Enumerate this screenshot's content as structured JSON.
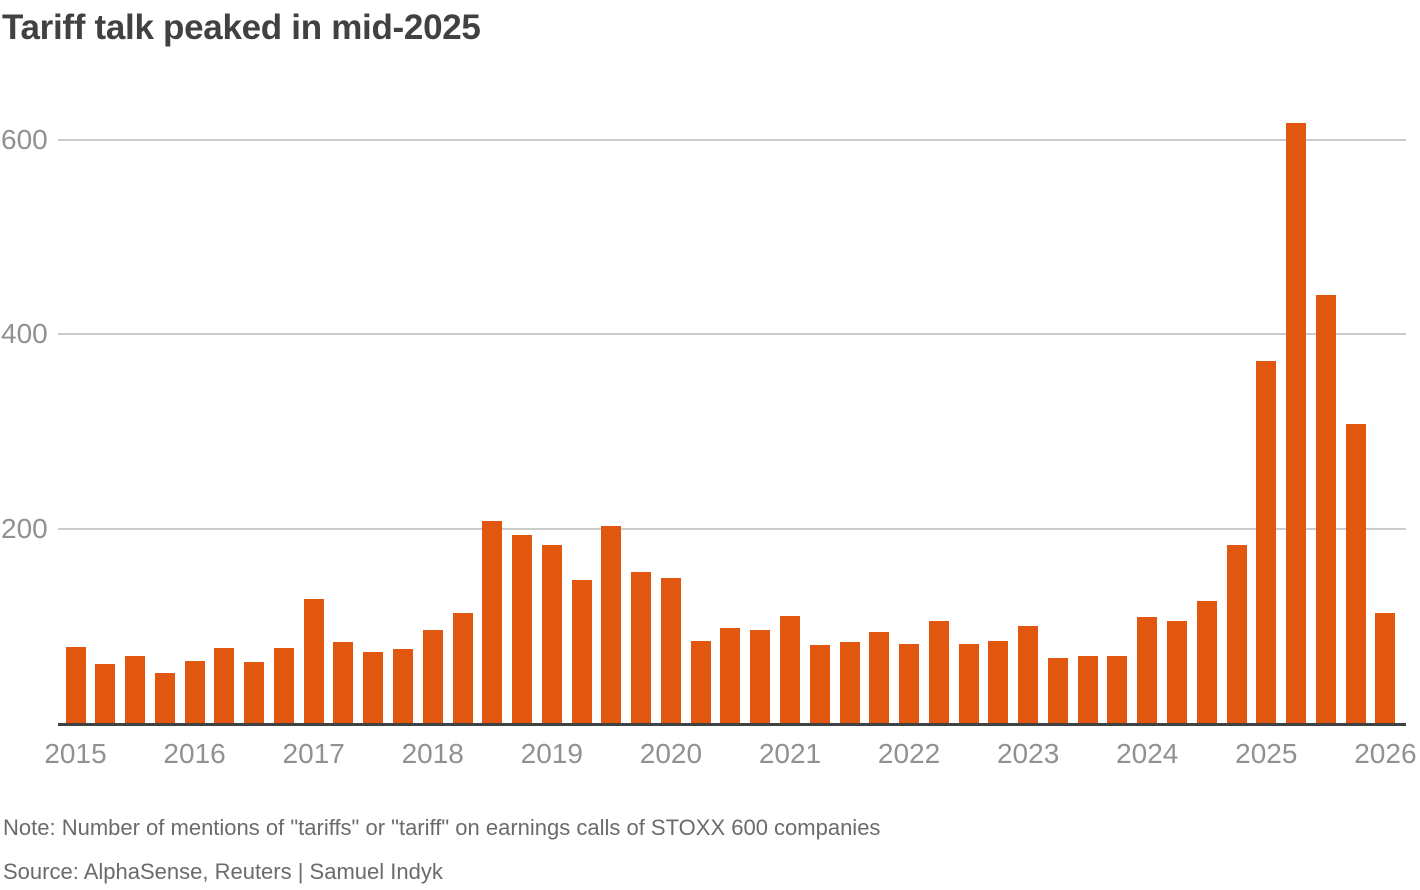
{
  "title": "Tariff talk peaked in mid-2025",
  "footer": {
    "note": "Note: Number of mentions of \"tariffs\" or \"tariff\" on earnings calls of STOXX 600 companies",
    "source": "Source: AlphaSense, Reuters | Samuel Indyk"
  },
  "colors": {
    "bar": "#e2570f",
    "gridline": "#cccccc",
    "axis_line": "#3f4143",
    "tick_label": "#8f9193",
    "title": "#3f4143",
    "footer_text": "#696b6d",
    "background": "#ffffff"
  },
  "chart_data": {
    "type": "bar",
    "title": "Tariff talk peaked in mid-2025",
    "xlabel": "",
    "ylabel": "",
    "x_unit": "quarterly",
    "categories": [
      "2015 Q1",
      "2015 Q2",
      "2015 Q3",
      "2015 Q4",
      "2016 Q1",
      "2016 Q2",
      "2016 Q3",
      "2016 Q4",
      "2017 Q1",
      "2017 Q2",
      "2017 Q3",
      "2017 Q4",
      "2018 Q1",
      "2018 Q2",
      "2018 Q3",
      "2018 Q4",
      "2019 Q1",
      "2019 Q2",
      "2019 Q3",
      "2019 Q4",
      "2020 Q1",
      "2020 Q2",
      "2020 Q3",
      "2020 Q4",
      "2021 Q1",
      "2021 Q2",
      "2021 Q3",
      "2021 Q4",
      "2022 Q1",
      "2022 Q2",
      "2022 Q3",
      "2022 Q4",
      "2023 Q1",
      "2023 Q2",
      "2023 Q3",
      "2023 Q4",
      "2024 Q1",
      "2024 Q2",
      "2024 Q3",
      "2024 Q4",
      "2025 Q1",
      "2025 Q2",
      "2025 Q3",
      "2025 Q4",
      "2026 Q1"
    ],
    "values": [
      78,
      61,
      69,
      51,
      64,
      77,
      63,
      77,
      128,
      83,
      73,
      76,
      96,
      113,
      208,
      193,
      183,
      147,
      203,
      155,
      149,
      84,
      98,
      96,
      110,
      80,
      83,
      94,
      81,
      105,
      81,
      84,
      100,
      67,
      69,
      69,
      109,
      105,
      126,
      183,
      373,
      618,
      440,
      308,
      113
    ],
    "x_tick_labels": [
      "2015",
      "2016",
      "2017",
      "2018",
      "2019",
      "2020",
      "2021",
      "2022",
      "2023",
      "2024",
      "2025",
      "2026"
    ],
    "y_ticks": [
      200,
      400,
      600
    ],
    "ylim": [
      0,
      640
    ],
    "grid": "horizontal-only",
    "legend": "none",
    "bar_color": "#e2570f",
    "peak": {
      "category": "2025 Q2",
      "value": 618
    }
  }
}
